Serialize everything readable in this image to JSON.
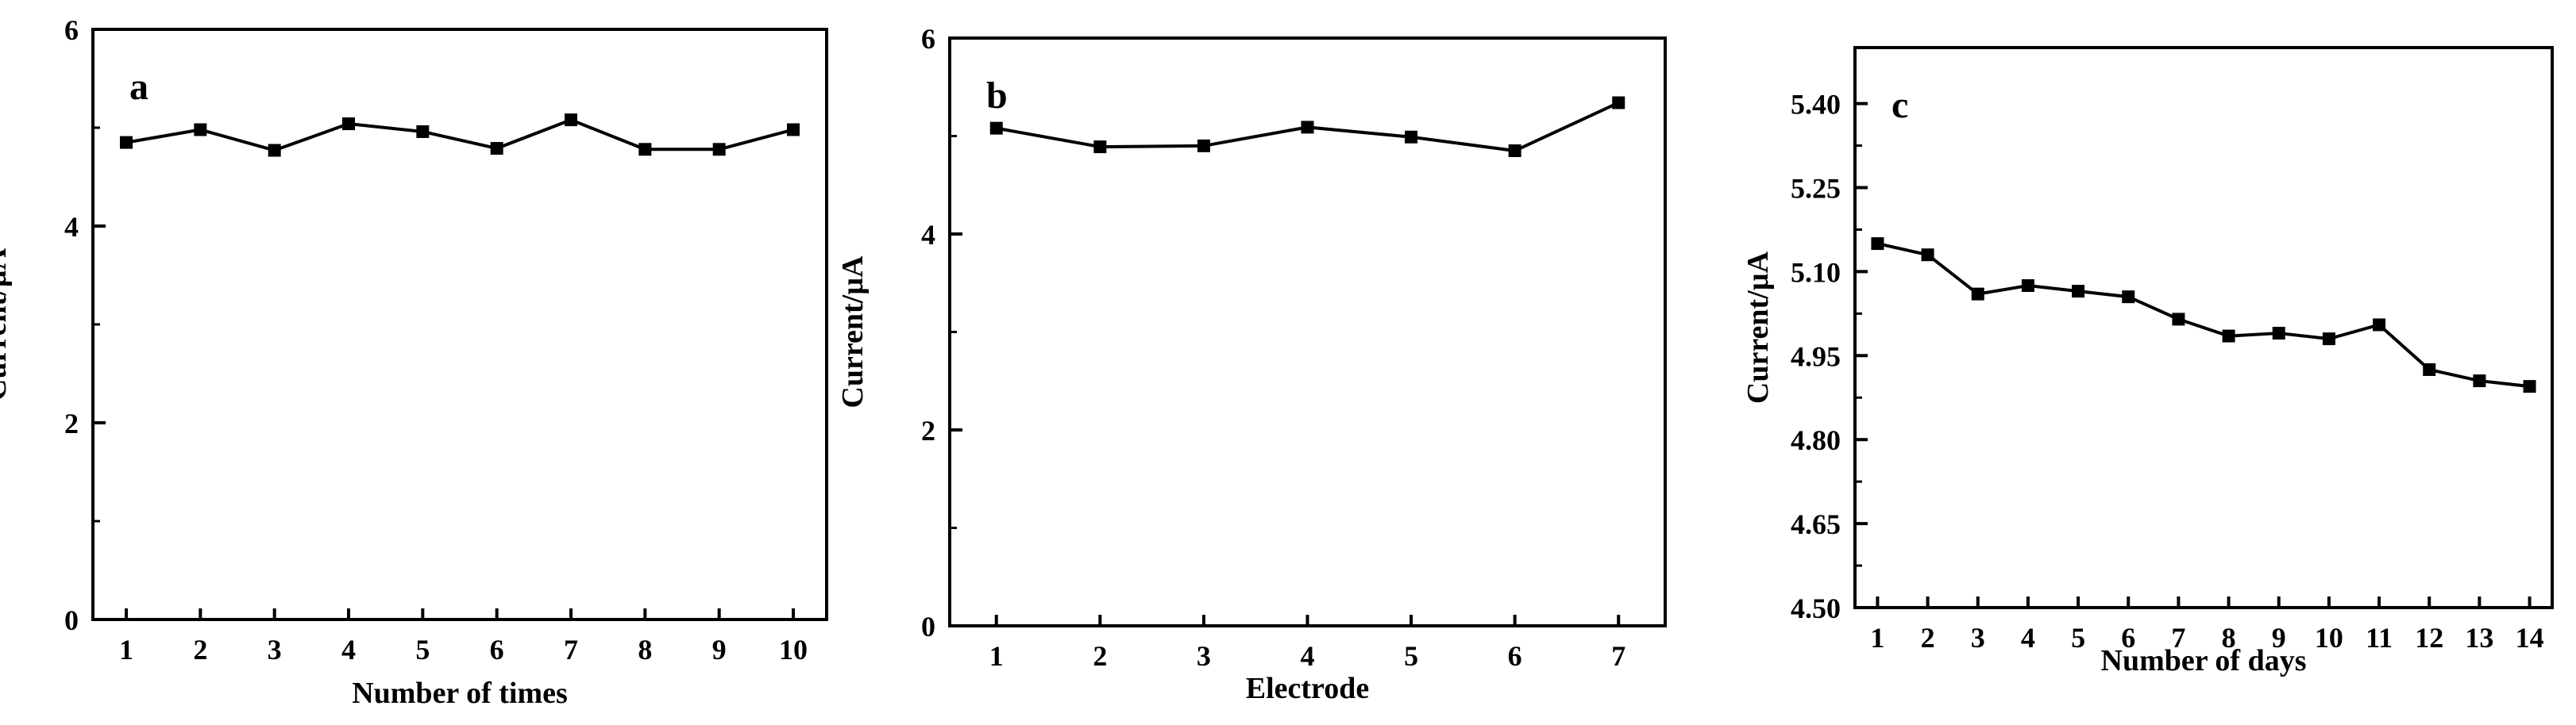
{
  "chart_data": [
    {
      "type": "line",
      "panel_label": "a",
      "xlabel": "Number of times",
      "ylabel": "Current/µA",
      "x": [
        1,
        2,
        3,
        4,
        5,
        6,
        7,
        8,
        9,
        10
      ],
      "series": [
        {
          "values": [
            4.85,
            4.98,
            4.77,
            5.04,
            4.96,
            4.79,
            5.08,
            4.78,
            4.78,
            4.98
          ]
        }
      ],
      "xticks": [
        "1",
        "2",
        "3",
        "4",
        "5",
        "6",
        "7",
        "8",
        "9",
        "10"
      ],
      "yticks": [
        "0",
        "2",
        "4",
        "6"
      ],
      "xlim": [
        0.55,
        10.45
      ],
      "ylim": [
        0,
        6
      ],
      "marker": "square",
      "line_color": "#000000",
      "grid": false
    },
    {
      "type": "line",
      "panel_label": "b",
      "xlabel": "Electrode",
      "ylabel": "Current/µA",
      "x": [
        1,
        2,
        3,
        4,
        5,
        6,
        7
      ],
      "series": [
        {
          "values": [
            5.08,
            4.89,
            4.9,
            5.09,
            4.99,
            4.85,
            5.34
          ]
        }
      ],
      "xticks": [
        "1",
        "2",
        "3",
        "4",
        "5",
        "6",
        "7"
      ],
      "yticks": [
        "0",
        "2",
        "4",
        "6"
      ],
      "xlim": [
        0.55,
        7.45
      ],
      "ylim": [
        0,
        6
      ],
      "marker": "square",
      "line_color": "#000000",
      "grid": false
    },
    {
      "type": "line",
      "panel_label": "c",
      "xlabel": "Number of days",
      "ylabel": "Current/µA",
      "x": [
        1,
        2,
        3,
        4,
        5,
        6,
        7,
        8,
        9,
        10,
        11,
        12,
        13,
        14
      ],
      "series": [
        {
          "values": [
            5.15,
            5.13,
            5.06,
            5.075,
            5.065,
            5.055,
            5.015,
            4.985,
            4.99,
            4.98,
            5.005,
            4.925,
            4.905,
            4.895
          ]
        }
      ],
      "xticks": [
        "1",
        "2",
        "3",
        "4",
        "5",
        "6",
        "7",
        "8",
        "9",
        "10",
        "11",
        "12",
        "13",
        "14"
      ],
      "yticks": [
        "4.50",
        "4.65",
        "4.80",
        "4.95",
        "5.10",
        "5.25",
        "5.40"
      ],
      "xlim": [
        0.55,
        14.45
      ],
      "ylim": [
        4.5,
        5.5
      ],
      "marker": "square",
      "line_color": "#000000",
      "grid": false
    }
  ]
}
